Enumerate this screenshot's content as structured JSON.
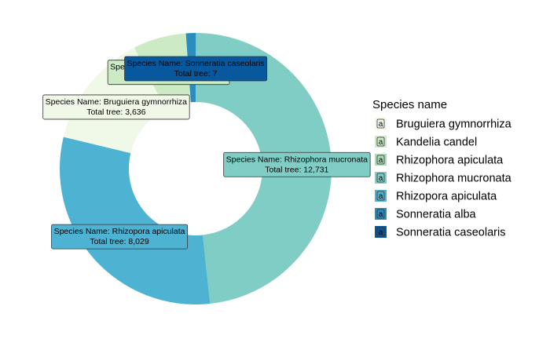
{
  "chart_data": {
    "type": "pie",
    "style": "donut",
    "legend": {
      "title": "Species name",
      "position": "right",
      "key_glyph": "a"
    },
    "label_prefix_name": "Species Name:",
    "label_prefix_total": "Total tree:",
    "slices": [
      {
        "name": "Sonneratia caseolaris",
        "value": 7,
        "value_label": "7",
        "color": "#08589e"
      },
      {
        "name": "Rhizophora mucronata",
        "value": 12731,
        "value_label": "12,731",
        "color": "#7fcdc4"
      },
      {
        "name": "Rhizopora apiculata",
        "value": 8029,
        "value_label": "8,029",
        "color": "#4eb3d3"
      },
      {
        "name": "Bruguiera gymnorrhiza",
        "value": 3636,
        "value_label": "3,636",
        "color": "#f0f9e8"
      },
      {
        "name": "Kandelia candel",
        "value": 1662,
        "value_label": "1,662",
        "color": "#ccebc5"
      },
      {
        "name": "Sonneratia alba",
        "value": 302,
        "value_label": "",
        "color": "#2b8cbe"
      }
    ],
    "legend_entries": [
      {
        "name": "Bruguiera gymnorrhiza",
        "color": "#f0f9e8"
      },
      {
        "name": "Kandelia candel",
        "color": "#ccebc5"
      },
      {
        "name": "Rhizophora apiculata",
        "color": "#a8ddb5"
      },
      {
        "name": "Rhizophora mucronata",
        "color": "#7fcdc4"
      },
      {
        "name": "Rhizopora apiculata",
        "color": "#4eb3d3"
      },
      {
        "name": "Sonneratia alba",
        "color": "#2b8cbe"
      },
      {
        "name": "Sonneratia caseolaris",
        "color": "#08589e"
      }
    ]
  }
}
